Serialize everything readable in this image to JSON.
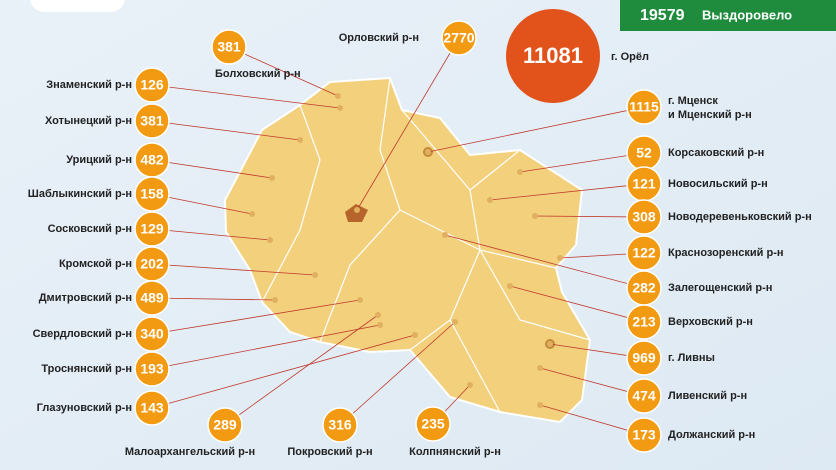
{
  "header": {
    "recovered_value": 19579,
    "recovered_label": "Выздоровело"
  },
  "city": {
    "value": 11081,
    "name": "г. Орёл"
  },
  "districts": [
    {
      "name": [
        "Знаменский р-н"
      ],
      "value": 126
    },
    {
      "name": [
        "Хотынецкий р-н"
      ],
      "value": 381
    },
    {
      "name": [
        "Урицкий р-н"
      ],
      "value": 482
    },
    {
      "name": [
        "Шаблыкинский р-н"
      ],
      "value": 158
    },
    {
      "name": [
        "Сосковский р-н"
      ],
      "value": 129
    },
    {
      "name": [
        "Кромской р-н"
      ],
      "value": 202
    },
    {
      "name": [
        "Дмитровский р-н"
      ],
      "value": 489
    },
    {
      "name": [
        "Свердловский р-н"
      ],
      "value": 340
    },
    {
      "name": [
        "Троснянский р-н"
      ],
      "value": 193
    },
    {
      "name": [
        "Глазуновский р-н"
      ],
      "value": 143
    },
    {
      "name": [
        "Болховский р-н"
      ],
      "value": 381
    },
    {
      "name": [
        "Орловский р-н"
      ],
      "value": 2770
    },
    {
      "name": [
        "г. Мценск",
        "и Мценский р-н"
      ],
      "value": 1115
    },
    {
      "name": [
        "Корсаковский р-н"
      ],
      "value": 52
    },
    {
      "name": [
        "Новосильский р-н"
      ],
      "value": 121
    },
    {
      "name": [
        "Новодеревеньковский р-н"
      ],
      "value": 308
    },
    {
      "name": [
        "Краснозоренский р-н"
      ],
      "value": 122
    },
    {
      "name": [
        "Залегощенский р-н"
      ],
      "value": 282
    },
    {
      "name": [
        "Верховский р-н"
      ],
      "value": 213
    },
    {
      "name": [
        "г. Ливны"
      ],
      "value": 969
    },
    {
      "name": [
        "Ливенский р-н"
      ],
      "value": 474
    },
    {
      "name": [
        "Должанский р-н"
      ],
      "value": 173
    },
    {
      "name": [
        "Малоархангельский р-н"
      ],
      "value": 289
    },
    {
      "name": [
        "Покровский р-н"
      ],
      "value": 316
    },
    {
      "name": [
        "Колпнянский р-н"
      ],
      "value": 235
    }
  ]
}
